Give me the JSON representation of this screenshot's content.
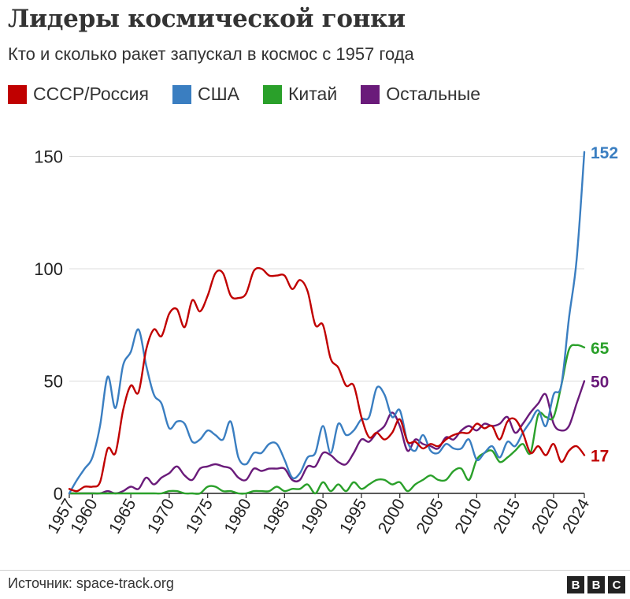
{
  "header": {
    "title": "Лидеры космической гонки",
    "subtitle": "Кто и сколько ракет запускал в космос с 1957 года"
  },
  "footer": {
    "source": "Источник: space-track.org",
    "logo_letters": [
      "B",
      "B",
      "C"
    ]
  },
  "chart_data": {
    "type": "line",
    "ylim": [
      0,
      160
    ],
    "xlim": [
      1957,
      2024
    ],
    "yticks": [
      0,
      50,
      100,
      150
    ],
    "xticks": [
      1957,
      1960,
      1965,
      1970,
      1975,
      1980,
      1985,
      1990,
      1995,
      2000,
      2005,
      2010,
      2015,
      2020,
      2024
    ],
    "grid": "horizontal",
    "legend_position": "top",
    "series": [
      {
        "name": "СССР/Россия",
        "color": "#c00000",
        "end_label": "17",
        "x": [
          1957,
          1958,
          1959,
          1960,
          1961,
          1962,
          1963,
          1964,
          1965,
          1966,
          1967,
          1968,
          1969,
          1970,
          1971,
          1972,
          1973,
          1974,
          1975,
          1976,
          1977,
          1978,
          1979,
          1980,
          1981,
          1982,
          1983,
          1984,
          1985,
          1986,
          1987,
          1988,
          1989,
          1990,
          1991,
          1992,
          1993,
          1994,
          1995,
          1996,
          1997,
          1998,
          1999,
          2000,
          2001,
          2002,
          2003,
          2004,
          2005,
          2006,
          2007,
          2008,
          2009,
          2010,
          2011,
          2012,
          2013,
          2014,
          2015,
          2016,
          2017,
          2018,
          2019,
          2020,
          2021,
          2022,
          2023,
          2024
        ],
        "values": [
          2,
          1,
          3,
          3,
          5,
          20,
          18,
          37,
          48,
          45,
          64,
          73,
          70,
          80,
          82,
          74,
          86,
          81,
          88,
          98,
          98,
          88,
          87,
          89,
          99,
          100,
          97,
          97,
          97,
          91,
          95,
          90,
          75,
          75,
          60,
          56,
          48,
          48,
          34,
          25,
          27,
          24,
          27,
          33,
          23,
          23,
          20,
          22,
          21,
          24,
          26,
          27,
          27,
          31,
          29,
          30,
          24,
          32,
          33,
          27,
          18,
          21,
          17,
          22,
          14,
          19,
          21,
          17
        ]
      },
      {
        "name": "США",
        "color": "#3a7ec1",
        "end_label": "152",
        "x": [
          1957,
          1958,
          1959,
          1960,
          1961,
          1962,
          1963,
          1964,
          1965,
          1966,
          1967,
          1968,
          1969,
          1970,
          1971,
          1972,
          1973,
          1974,
          1975,
          1976,
          1977,
          1978,
          1979,
          1980,
          1981,
          1982,
          1983,
          1984,
          1985,
          1986,
          1987,
          1988,
          1989,
          1990,
          1991,
          1992,
          1993,
          1994,
          1995,
          1996,
          1997,
          1998,
          1999,
          2000,
          2001,
          2002,
          2003,
          2004,
          2005,
          2006,
          2007,
          2008,
          2009,
          2010,
          2011,
          2012,
          2013,
          2014,
          2015,
          2016,
          2017,
          2018,
          2019,
          2020,
          2021,
          2022,
          2023,
          2024
        ],
        "values": [
          0,
          6,
          11,
          16,
          30,
          52,
          38,
          57,
          63,
          73,
          57,
          44,
          40,
          29,
          32,
          31,
          23,
          24,
          28,
          26,
          24,
          32,
          16,
          13,
          18,
          18,
          22,
          22,
          15,
          7,
          9,
          16,
          18,
          30,
          18,
          31,
          26,
          28,
          33,
          34,
          47,
          44,
          34,
          37,
          23,
          19,
          26,
          19,
          18,
          22,
          20,
          20,
          24,
          15,
          18,
          21,
          16,
          23,
          21,
          27,
          32,
          37,
          30,
          44,
          48,
          78,
          104,
          152
        ]
      },
      {
        "name": "Китай",
        "color": "#2aa02a",
        "end_label": "65",
        "x": [
          1957,
          1958,
          1959,
          1960,
          1961,
          1962,
          1963,
          1964,
          1965,
          1966,
          1967,
          1968,
          1969,
          1970,
          1971,
          1972,
          1973,
          1974,
          1975,
          1976,
          1977,
          1978,
          1979,
          1980,
          1981,
          1982,
          1983,
          1984,
          1985,
          1986,
          1987,
          1988,
          1989,
          1990,
          1991,
          1992,
          1993,
          1994,
          1995,
          1996,
          1997,
          1998,
          1999,
          2000,
          2001,
          2002,
          2003,
          2004,
          2005,
          2006,
          2007,
          2008,
          2009,
          2010,
          2011,
          2012,
          2013,
          2014,
          2015,
          2016,
          2017,
          2018,
          2019,
          2020,
          2021,
          2022,
          2023,
          2024
        ],
        "values": [
          0,
          0,
          0,
          0,
          0,
          0,
          0,
          0,
          0,
          0,
          0,
          0,
          0,
          1,
          1,
          0,
          0,
          0,
          3,
          3,
          1,
          1,
          0,
          0,
          1,
          1,
          1,
          3,
          1,
          2,
          2,
          4,
          0,
          5,
          1,
          4,
          1,
          5,
          2,
          4,
          6,
          6,
          4,
          5,
          1,
          4,
          6,
          8,
          6,
          6,
          10,
          11,
          6,
          15,
          18,
          19,
          14,
          16,
          19,
          22,
          18,
          35,
          34,
          34,
          48,
          64,
          66,
          65
        ]
      },
      {
        "name": "Остальные",
        "color": "#6a1b7a",
        "end_label": "50",
        "x": [
          1957,
          1958,
          1959,
          1960,
          1961,
          1962,
          1963,
          1964,
          1965,
          1966,
          1967,
          1968,
          1969,
          1970,
          1971,
          1972,
          1973,
          1974,
          1975,
          1976,
          1977,
          1978,
          1979,
          1980,
          1981,
          1982,
          1983,
          1984,
          1985,
          1986,
          1987,
          1988,
          1989,
          1990,
          1991,
          1992,
          1993,
          1994,
          1995,
          1996,
          1997,
          1998,
          1999,
          2000,
          2001,
          2002,
          2003,
          2004,
          2005,
          2006,
          2007,
          2008,
          2009,
          2010,
          2011,
          2012,
          2013,
          2014,
          2015,
          2016,
          2017,
          2018,
          2019,
          2020,
          2021,
          2022,
          2023,
          2024
        ],
        "values": [
          0,
          0,
          0,
          0,
          0,
          1,
          0,
          1,
          3,
          2,
          7,
          4,
          7,
          9,
          12,
          8,
          6,
          11,
          12,
          13,
          12,
          11,
          7,
          6,
          11,
          10,
          11,
          11,
          11,
          6,
          6,
          12,
          12,
          18,
          17,
          14,
          13,
          18,
          24,
          23,
          27,
          30,
          36,
          30,
          19,
          24,
          22,
          21,
          20,
          25,
          24,
          28,
          30,
          28,
          31,
          30,
          31,
          34,
          27,
          31,
          36,
          40,
          44,
          31,
          28,
          30,
          40,
          50
        ]
      }
    ]
  }
}
